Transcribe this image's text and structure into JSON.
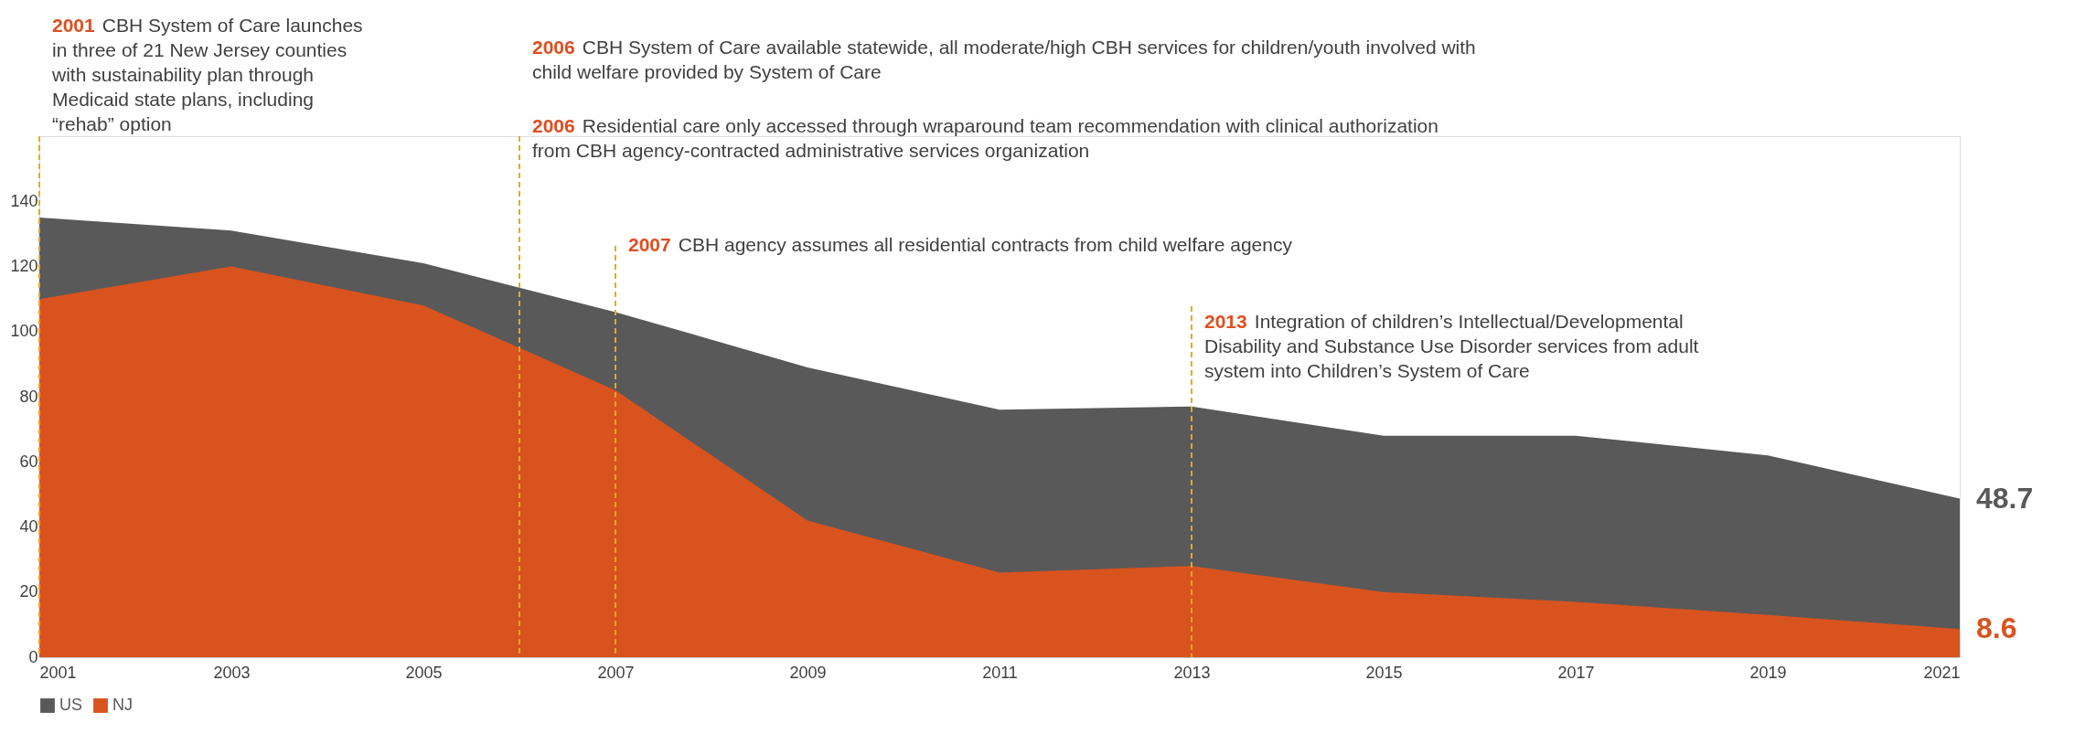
{
  "chart_data": {
    "type": "area",
    "x": [
      2001,
      2003,
      2005,
      2007,
      2009,
      2011,
      2013,
      2015,
      2017,
      2019,
      2021
    ],
    "xlim": [
      2001,
      2021
    ],
    "xticks": [
      2001,
      2003,
      2005,
      2007,
      2009,
      2011,
      2013,
      2015,
      2017,
      2019,
      2021
    ],
    "ylim": [
      0,
      160
    ],
    "yticks": [
      0,
      20,
      40,
      60,
      80,
      100,
      120,
      140
    ],
    "grid": false,
    "legend": "bottom",
    "series": [
      {
        "name": "US",
        "color": "#595959",
        "values": [
          135,
          131,
          121,
          106,
          89,
          76,
          77,
          68,
          68,
          62,
          48.7
        ],
        "value_labels": [
          null,
          null,
          null,
          null,
          null,
          null,
          null,
          null,
          null,
          null,
          "48.7"
        ]
      },
      {
        "name": "NJ",
        "color": "#d9531e",
        "values": [
          110,
          120,
          108,
          82,
          42,
          26,
          28,
          20,
          17,
          13,
          8.6
        ],
        "value_labels": [
          null,
          null,
          null,
          null,
          null,
          null,
          null,
          null,
          null,
          null,
          "8.6"
        ]
      }
    ],
    "ref_lines": [
      {
        "axis": "x",
        "value": 2001,
        "color": "#e8a820",
        "line_style": "dashed",
        "label": "2001 CBH System of Care launches in three of 21 New Jersey counties with sustainability plan through Medicaid state plans, including “rehab” option"
      },
      {
        "axis": "x",
        "value": 2006,
        "color": "#e8a820",
        "line_style": "dashed",
        "label": "2006 CBH System of Care available statewide, all moderate/high CBH services for children/youth involved with child welfare provided by System of Care"
      },
      {
        "axis": "x",
        "value": 2007,
        "color": "#e8a820",
        "line_style": "dashed",
        "label": "2007 CBH agency assumes all residential contracts from child welfare agency"
      },
      {
        "axis": "x",
        "value": 2013,
        "color": "#e8a820",
        "line_style": "dashed",
        "label": "2013 Integration of children’s Intellectual/Developmental Disability and Substance Use Disorder services from adult system into Children’s System of Care"
      }
    ],
    "annotations": [
      "2006 Residential care only accessed through wraparound team recommendation with clinical authorization from CBH agency-contracted administrative services organization"
    ]
  }
}
